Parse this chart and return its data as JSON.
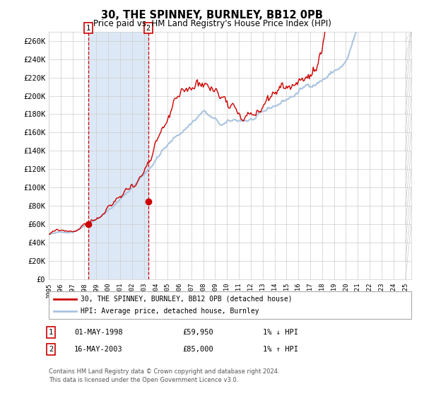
{
  "title": "30, THE SPINNEY, BURNLEY, BB12 0PB",
  "subtitle": "Price paid vs. HM Land Registry's House Price Index (HPI)",
  "title_fontsize": 10.5,
  "subtitle_fontsize": 8.5,
  "ylabel_ticks": [
    "£0",
    "£20K",
    "£40K",
    "£60K",
    "£80K",
    "£100K",
    "£120K",
    "£140K",
    "£160K",
    "£180K",
    "£200K",
    "£220K",
    "£240K",
    "£260K"
  ],
  "ytick_values": [
    0,
    20000,
    40000,
    60000,
    80000,
    100000,
    120000,
    140000,
    160000,
    180000,
    200000,
    220000,
    240000,
    260000
  ],
  "ylim": [
    0,
    270000
  ],
  "background_color": "#ffffff",
  "plot_bg_color": "#ffffff",
  "grid_color": "#cccccc",
  "hpi_line_color": "#aac4e0",
  "price_line_color": "#cc0000",
  "shade_color": "#dce8f5",
  "dashed_line_color": "#cc0000",
  "marker_color": "#cc0000",
  "marker1_x": 1998.33,
  "marker1_y": 59950,
  "marker2_x": 2003.37,
  "marker2_y": 85000,
  "vline1_x": 1998.33,
  "vline2_x": 2003.37,
  "shade_x1": 1998.33,
  "shade_x2": 2003.37,
  "legend_line1": "30, THE SPINNEY, BURNLEY, BB12 0PB (detached house)",
  "legend_line2": "HPI: Average price, detached house, Burnley",
  "label1_num": "1",
  "label1_date": "01-MAY-1998",
  "label1_price": "£59,950",
  "label1_hpi": "1% ↓ HPI",
  "label2_num": "2",
  "label2_date": "16-MAY-2003",
  "label2_price": "£85,000",
  "label2_hpi": "1% ↑ HPI",
  "footer1": "Contains HM Land Registry data © Crown copyright and database right 2024.",
  "footer2": "This data is licensed under the Open Government Licence v3.0.",
  "xmin": 1995.0,
  "xmax": 2025.5
}
